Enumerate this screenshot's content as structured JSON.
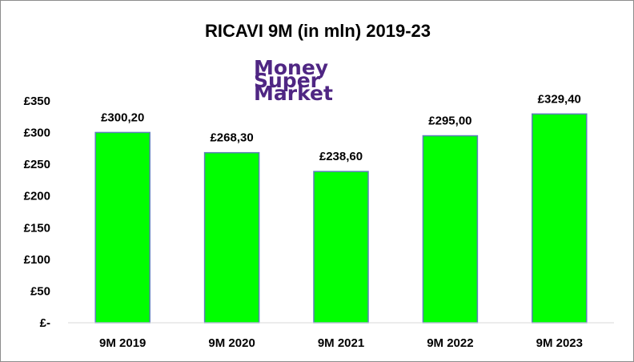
{
  "chart_data": {
    "type": "bar",
    "title": "RICAVI 9M (in mln) 2019-23",
    "categories": [
      "9M 2019",
      "9M 2020",
      "9M 2021",
      "9M 2022",
      "9M 2023"
    ],
    "values": [
      300.2,
      268.3,
      238.6,
      295.0,
      329.4
    ],
    "data_labels": [
      "£300,20",
      "£268,30",
      "£238,60",
      "£295,00",
      "£329,40"
    ],
    "ylim": [
      0,
      350
    ],
    "y_ticks": [
      0,
      50,
      100,
      150,
      200,
      250,
      300,
      350
    ],
    "y_tick_labels": [
      "£-",
      "£50",
      "£100",
      "£150",
      "£200",
      "£250",
      "£300",
      "£350"
    ],
    "xlabel": "",
    "ylabel": "",
    "grid": false,
    "legend": "none",
    "bar_color": "#00ff00",
    "bar_border_color": "#5b7fb8"
  },
  "logo": {
    "lines": [
      "Money",
      "Super",
      "Market"
    ],
    "color": "#4f2683"
  }
}
